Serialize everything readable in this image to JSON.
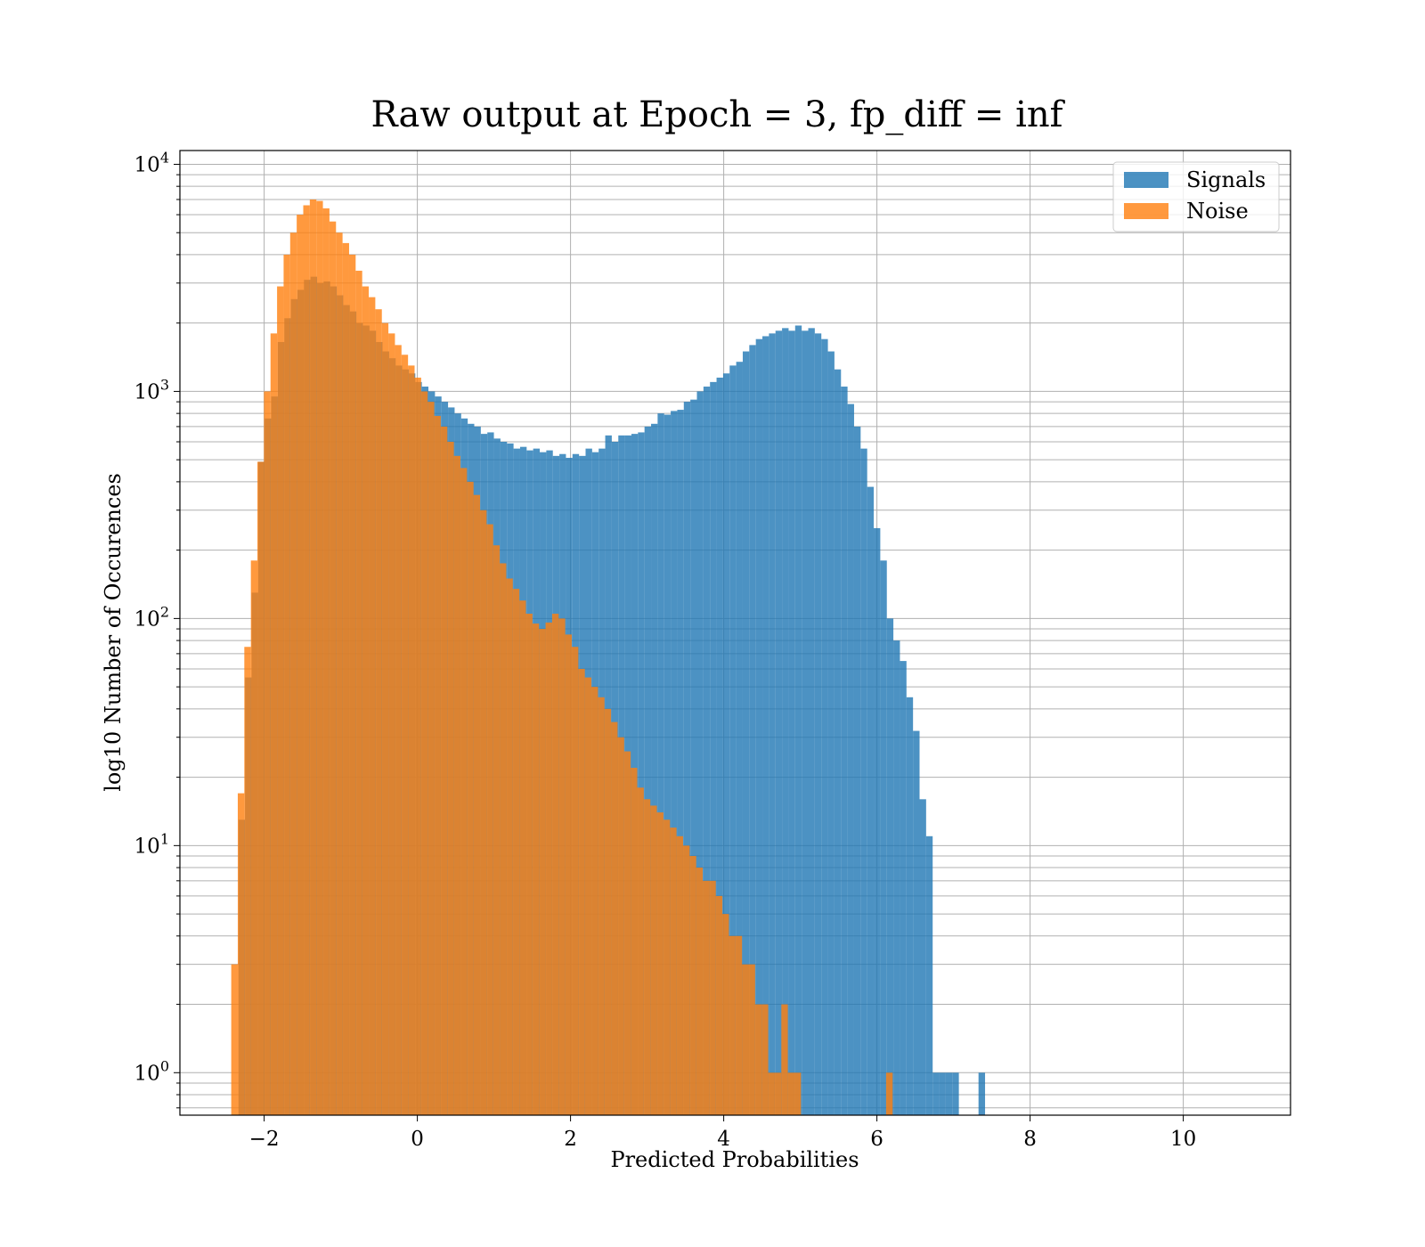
{
  "chart_data": {
    "type": "histogram",
    "title": "Raw output at Epoch = 3, fp_diff = inf",
    "xlabel": "Predicted Probabilities",
    "ylabel": "log10 Number of Occurences",
    "xlim": [
      -3.1,
      11.4
    ],
    "ylim": [
      0.65,
      11500
    ],
    "yscale": "log",
    "grid": true,
    "legend_position": "top-right",
    "x_ticks": [
      {
        "value": -2,
        "label": "−2"
      },
      {
        "value": 0,
        "label": "0"
      },
      {
        "value": 2,
        "label": "2"
      },
      {
        "value": 4,
        "label": "4"
      },
      {
        "value": 6,
        "label": "6"
      },
      {
        "value": 8,
        "label": "8"
      },
      {
        "value": 10,
        "label": "10"
      }
    ],
    "y_ticks": [
      {
        "value": 1,
        "base": "10",
        "exp": "0"
      },
      {
        "value": 10,
        "base": "10",
        "exp": "1"
      },
      {
        "value": 100,
        "base": "10",
        "exp": "2"
      },
      {
        "value": 1000,
        "base": "10",
        "exp": "3"
      },
      {
        "value": 10000,
        "base": "10",
        "exp": "4"
      }
    ],
    "series": [
      {
        "name": "Signals",
        "color": "#1f77b4",
        "opacity": 0.8,
        "bin_start": -2.335,
        "bin_width": 0.0855,
        "counts": [
          13,
          55,
          130,
          490,
          760,
          950,
          1650,
          2100,
          2550,
          2800,
          3100,
          3200,
          3000,
          3050,
          2900,
          2650,
          2400,
          2250,
          2000,
          1950,
          1850,
          1650,
          1500,
          1400,
          1300,
          1250,
          1200,
          1100,
          1050,
          1000,
          950,
          900,
          850,
          800,
          760,
          720,
          700,
          650,
          660,
          620,
          600,
          590,
          560,
          570,
          550,
          560,
          540,
          550,
          520,
          530,
          510,
          530,
          520,
          560,
          540,
          560,
          640,
          600,
          640,
          640,
          650,
          660,
          700,
          720,
          800,
          790,
          820,
          830,
          900,
          920,
          1000,
          1050,
          1100,
          1150,
          1200,
          1300,
          1350,
          1500,
          1600,
          1700,
          1750,
          1800,
          1850,
          1900,
          1850,
          1950,
          1850,
          1900,
          1800,
          1700,
          1500,
          1250,
          1050,
          880,
          700,
          560,
          380,
          250,
          180,
          100,
          80,
          65,
          45,
          32,
          16,
          11,
          1,
          1,
          1,
          1,
          0,
          0,
          0,
          1
        ]
      },
      {
        "name": "Noise",
        "color": "#ff7f0e",
        "opacity": 0.8,
        "bin_start": -2.43,
        "bin_width": 0.0855,
        "counts": [
          3,
          17,
          75,
          180,
          490,
          1000,
          1800,
          2900,
          4000,
          5000,
          6000,
          6600,
          7000,
          6900,
          6400,
          5600,
          5000,
          4500,
          4000,
          3400,
          2900,
          2600,
          2300,
          2000,
          1800,
          1600,
          1450,
          1300,
          1150,
          1000,
          900,
          780,
          700,
          600,
          520,
          460,
          400,
          350,
          300,
          260,
          210,
          175,
          150,
          135,
          120,
          105,
          95,
          90,
          96,
          105,
          100,
          85,
          75,
          60,
          55,
          50,
          45,
          40,
          35,
          30,
          26,
          22,
          18,
          16,
          15,
          14,
          13,
          12,
          11,
          10,
          9,
          8,
          7,
          7,
          6,
          5,
          4,
          4,
          3,
          3,
          2,
          2,
          1,
          1,
          2,
          1,
          1,
          0,
          0,
          0,
          0,
          0,
          0,
          0,
          0,
          0,
          0,
          0,
          0,
          0,
          1
        ]
      }
    ]
  }
}
